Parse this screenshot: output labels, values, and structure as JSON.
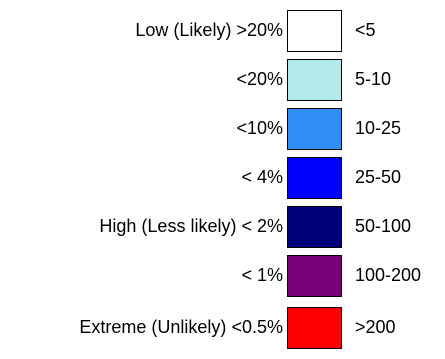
{
  "legend": {
    "rows": [
      {
        "category": "Low (Likely)",
        "probability": ">20%",
        "range": "<5",
        "color": "#ffffff"
      },
      {
        "category": "",
        "probability": "<20%",
        "range": "5-10",
        "color": "#b3eaea"
      },
      {
        "category": "",
        "probability": "<10%",
        "range": "10-25",
        "color": "#2f8ff5"
      },
      {
        "category": "",
        "probability": "< 4%",
        "range": "25-50",
        "color": "#0000ff"
      },
      {
        "category": "High (Less likely)",
        "probability": "< 2%",
        "range": "50-100",
        "color": "#00007a"
      },
      {
        "category": "",
        "probability": "< 1%",
        "range": "100-200",
        "color": "#7a007a"
      },
      {
        "category": "Extreme (Unlikely)",
        "probability": "<0.5%",
        "range": ">200",
        "color": "#ff0000"
      }
    ]
  }
}
